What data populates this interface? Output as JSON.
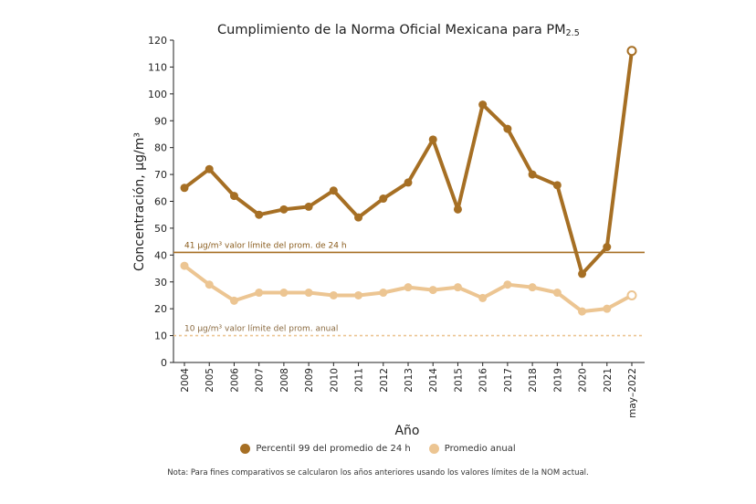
{
  "chart_data": {
    "type": "line",
    "title": "Cumplimiento de la Norma Oficial Mexicana para PM",
    "title_sub": "2.5",
    "xlabel": "Año",
    "ylabel": "Concentración, µg/m³",
    "ylim": [
      0,
      120
    ],
    "yticks": [
      0,
      10,
      20,
      30,
      40,
      50,
      60,
      70,
      80,
      90,
      100,
      110,
      120
    ],
    "categories": [
      "2004",
      "2005",
      "2006",
      "2007",
      "2008",
      "2009",
      "2010",
      "2011",
      "2012",
      "2013",
      "2014",
      "2015",
      "2016",
      "2017",
      "2018",
      "2019",
      "2020",
      "2021",
      "may–2022"
    ],
    "series": [
      {
        "name": "Percentil 99 del promedio de 24 h",
        "color": "#a66f24",
        "values": [
          65,
          72,
          62,
          55,
          57,
          58,
          64,
          54,
          61,
          67,
          83,
          57,
          96,
          87,
          70,
          66,
          33,
          43,
          116
        ]
      },
      {
        "name": "Promedio anual",
        "color": "#ecc592",
        "values": [
          36,
          29,
          23,
          26,
          26,
          26,
          25,
          25,
          26,
          28,
          27,
          28,
          24,
          29,
          28,
          26,
          19,
          20,
          25
        ]
      }
    ],
    "reference_lines": [
      {
        "value": 41,
        "label": "41 µg/m³ valor límite del prom. de 24 h",
        "color": "#a66f24",
        "style": "solid"
      },
      {
        "value": 10,
        "label": "10 µg/m³ valor límite del prom. anual",
        "color": "#ecc592",
        "style": "dashed"
      }
    ]
  },
  "note": "Nota: Para fines comparativos se calcularon los años anteriores usando los valores límites de la NOM actual."
}
